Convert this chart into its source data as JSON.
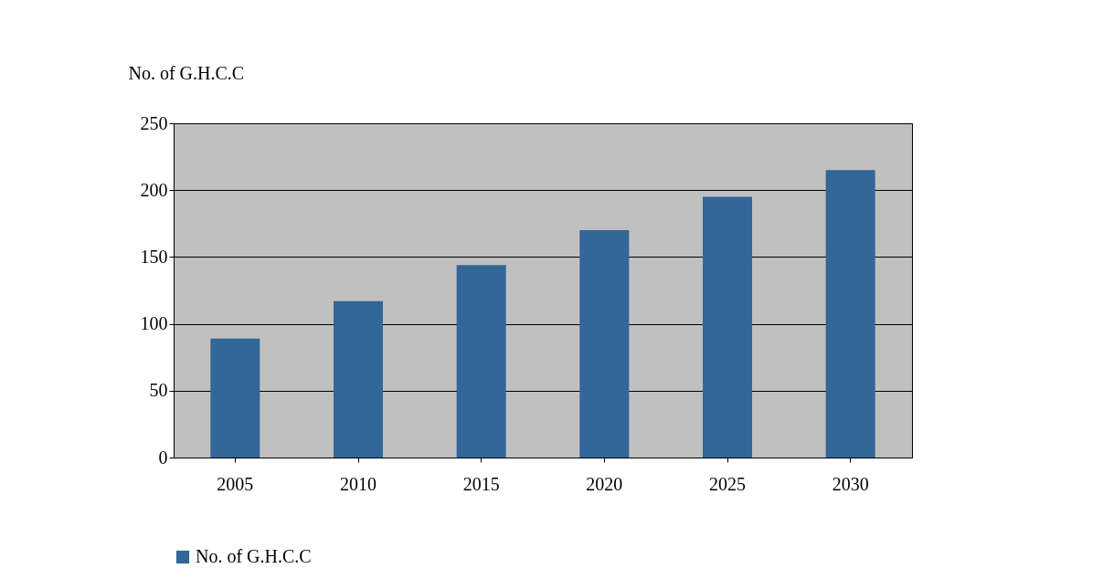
{
  "chart_data": {
    "type": "bar",
    "ylabel": "No. of G.H.C.C",
    "categories": [
      "2005",
      "2010",
      "2015",
      "2020",
      "2025",
      "2030"
    ],
    "series": [
      {
        "name": "No. of G.H.C.C",
        "color": "#336699",
        "values": [
          89,
          117,
          144,
          170,
          195,
          215
        ]
      }
    ],
    "ylim": [
      0,
      250
    ],
    "yticks": [
      0,
      50,
      100,
      150,
      200,
      250
    ],
    "grid": "y",
    "legend": "bottom"
  }
}
